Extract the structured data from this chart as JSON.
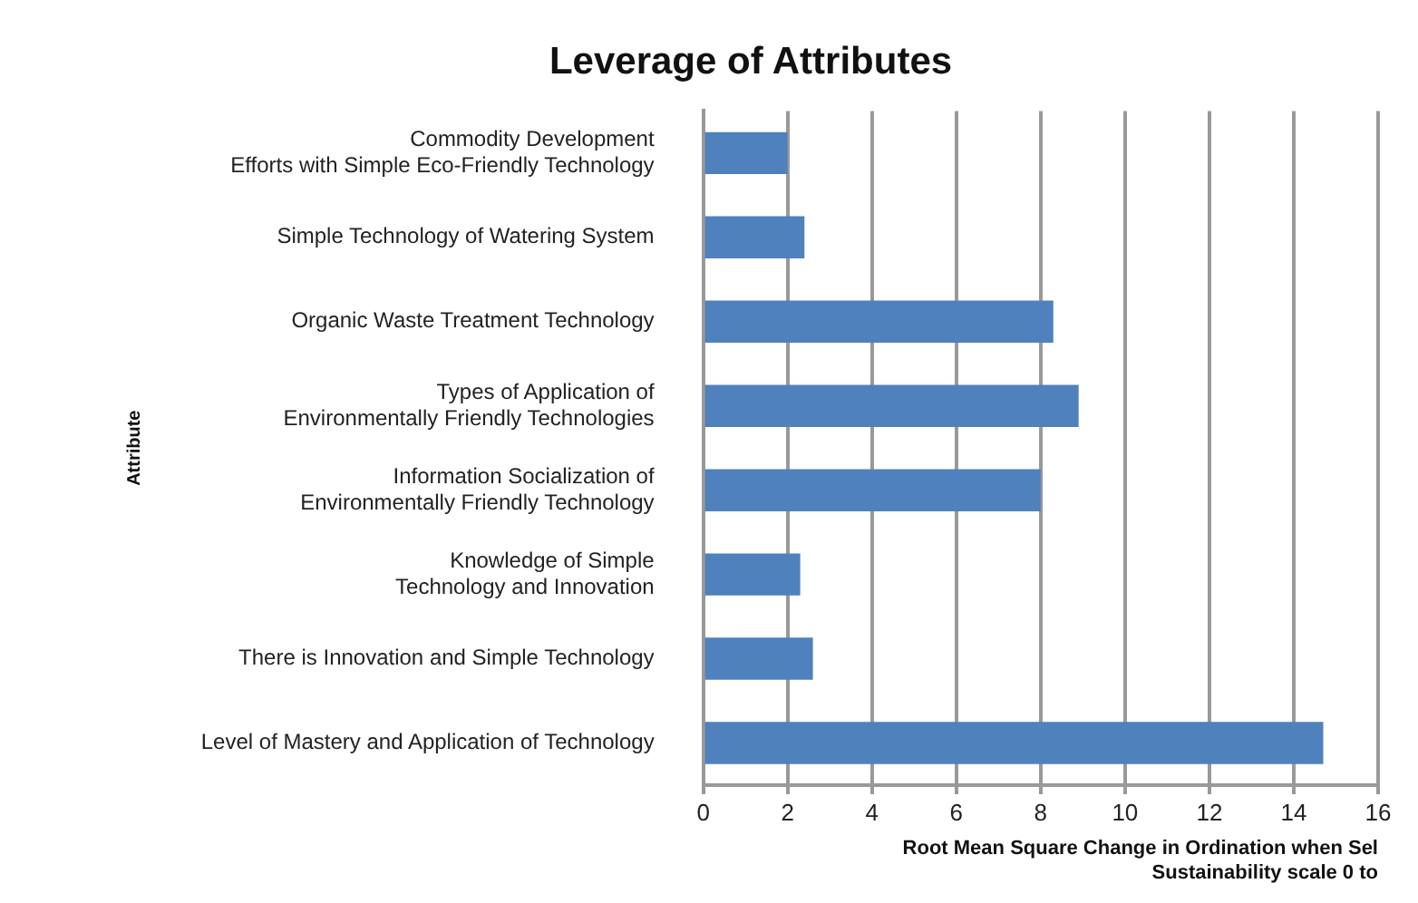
{
  "chart_data": {
    "type": "bar",
    "orientation": "horizontal",
    "title": "Leverage of Attributes",
    "xlabel": "Root Mean Square Change in Ordination when Sel\nSustainability scale 0 to",
    "ylabel": "Attribute",
    "categories": [
      "Commodity Development\nEfforts with Simple Eco-Friendly Technology",
      "Simple Technology of Watering System",
      "Organic Waste Treatment Technology",
      "Types of Application of\nEnvironmentally Friendly Technologies",
      "Information Socialization of\nEnvironmentally Friendly Technology",
      "Knowledge of Simple\nTechnology and Innovation",
      "There is Innovation and Simple Technology",
      "Level of Mastery and Application of Technology"
    ],
    "values": [
      2.0,
      2.4,
      8.3,
      8.9,
      8.0,
      2.3,
      2.6,
      14.7
    ],
    "color": "#4f81bd",
    "xlim": [
      0,
      16
    ],
    "xticks": [
      0,
      2,
      4,
      6,
      8,
      10,
      12,
      14,
      16
    ],
    "grid": "x",
    "legend": false
  }
}
